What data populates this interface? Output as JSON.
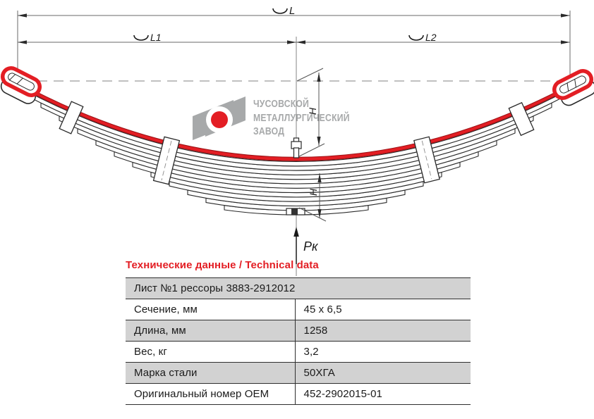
{
  "drawing": {
    "labels": {
      "length_total": "L",
      "length_front": "L1",
      "length_rear": "L2",
      "height_upper": "H",
      "height_lower": "H",
      "test_load": "Pк"
    }
  },
  "logo": {
    "line1": "ЧУСОВСКОЙ",
    "line2": "МЕТАЛЛУРГИЧЕСКИЙ",
    "line3": "ЗАВОД"
  },
  "table": {
    "title": "Технические данные / Technical data",
    "header_row": "Лист №1 рессоры 3883-2912012",
    "rows": [
      {
        "label": "Сечение, мм",
        "value": "45 x 6,5"
      },
      {
        "label": "Длина, мм",
        "value": "1258"
      },
      {
        "label": "Вес, кг",
        "value": "3,2"
      },
      {
        "label": "Марка стали",
        "value": "50ХГА"
      },
      {
        "label": "Оригинальный номер OEM",
        "value": "452-2902015-01"
      }
    ]
  },
  "colors": {
    "accent_red": "#e31e24",
    "logo_gray": "#a7a9aa",
    "row_gray": "#d2d2d2",
    "line_dark": "#2a2a2a"
  }
}
